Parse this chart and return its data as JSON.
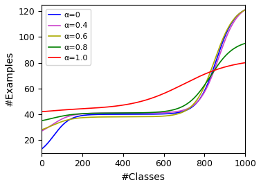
{
  "title": "",
  "xlabel": "#Classes",
  "ylabel": "#Examples",
  "xlim": [
    0,
    1000
  ],
  "ylim": [
    10,
    125
  ],
  "yticks": [
    20,
    40,
    60,
    80,
    100,
    120
  ],
  "xticks": [
    0,
    200,
    400,
    600,
    800,
    1000
  ],
  "colors": [
    "blue",
    "#cc44cc",
    "#aaaa00",
    "green",
    "red"
  ],
  "labels": [
    "α=0",
    "α=0.4",
    "α=0.6",
    "α=0.8",
    "α=1.0"
  ],
  "n_classes": 1000,
  "figsize": [
    3.77,
    2.7
  ],
  "dpi": 100,
  "curve_params": [
    {
      "start": 13,
      "plateau": 40,
      "end": 121,
      "r1": 0.06,
      "r2": 0.86,
      "s1": 25,
      "s2": 22
    },
    {
      "start": 27,
      "plateau": 41,
      "end": 121,
      "r1": 0.05,
      "r2": 0.87,
      "s1": 22,
      "s2": 21
    },
    {
      "start": 28,
      "plateau": 38,
      "end": 121,
      "r1": 0.05,
      "r2": 0.85,
      "s1": 20,
      "s2": 20
    },
    {
      "start": 35,
      "plateau": 41,
      "end": 95,
      "r1": 0.05,
      "r2": 0.83,
      "s1": 18,
      "s2": 17
    },
    {
      "start": 42,
      "plateau": 44,
      "end": 80,
      "r1": 0.04,
      "r2": 0.7,
      "s1": 15,
      "s2": 8
    }
  ]
}
